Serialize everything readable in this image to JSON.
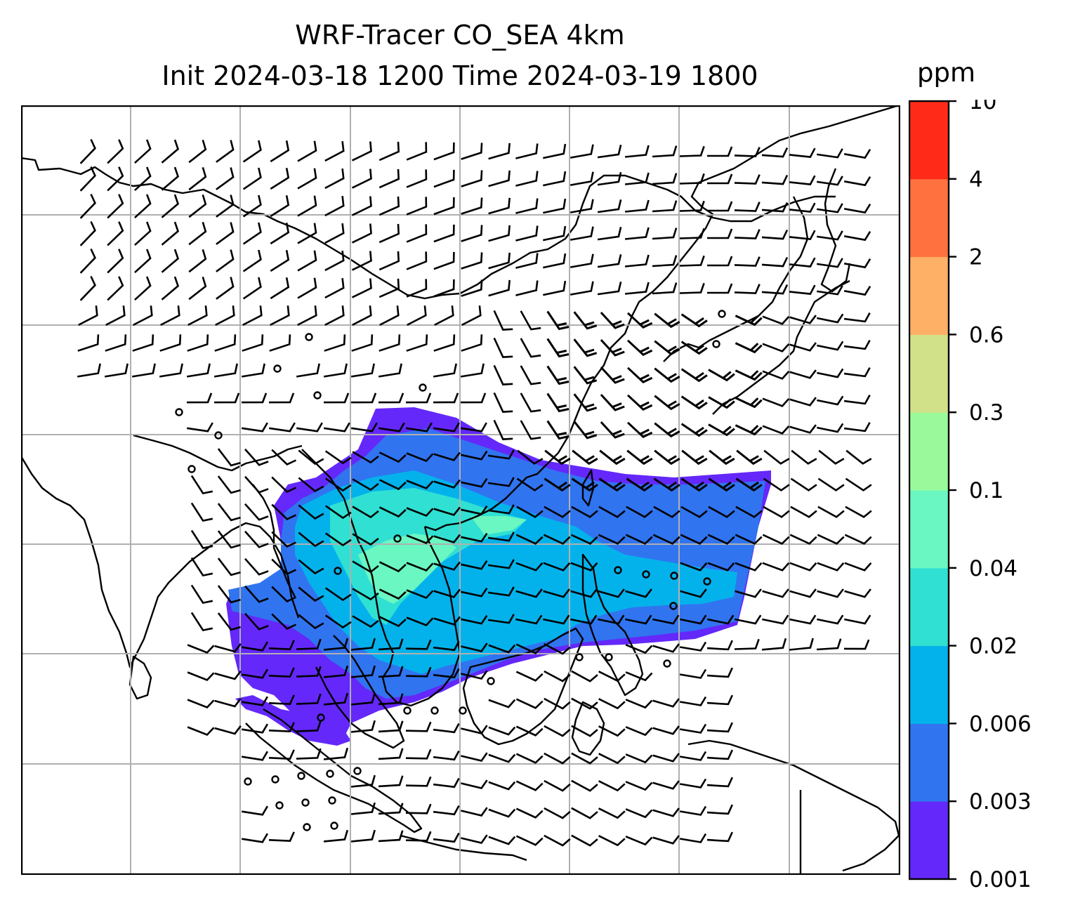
{
  "title": {
    "line1": "WRF-Tracer CO_SEA 4km",
    "line2": "Init 2024-03-18 1200 Time 2024-03-19 1800"
  },
  "colorbar": {
    "unit": "ppm",
    "levels": [
      "0.001",
      "0.003",
      "0.006",
      "0.02",
      "0.04",
      "0.1",
      "0.3",
      "0.6",
      "2",
      "4",
      "10"
    ],
    "colors": [
      "#6428fa",
      "#3074f0",
      "#04b2eb",
      "#30e0d2",
      "#6af7c2",
      "#9afa9b",
      "#d1e18a",
      "#feb066",
      "#ff723f",
      "#ff2b18"
    ]
  },
  "map": {
    "gridlines": true,
    "tracer_colors": {
      "lowest": "#6428fa",
      "low": "#3074f0",
      "mid": "#04b2eb",
      "midhigh": "#30e0d2",
      "high": "#6af7c2"
    }
  }
}
